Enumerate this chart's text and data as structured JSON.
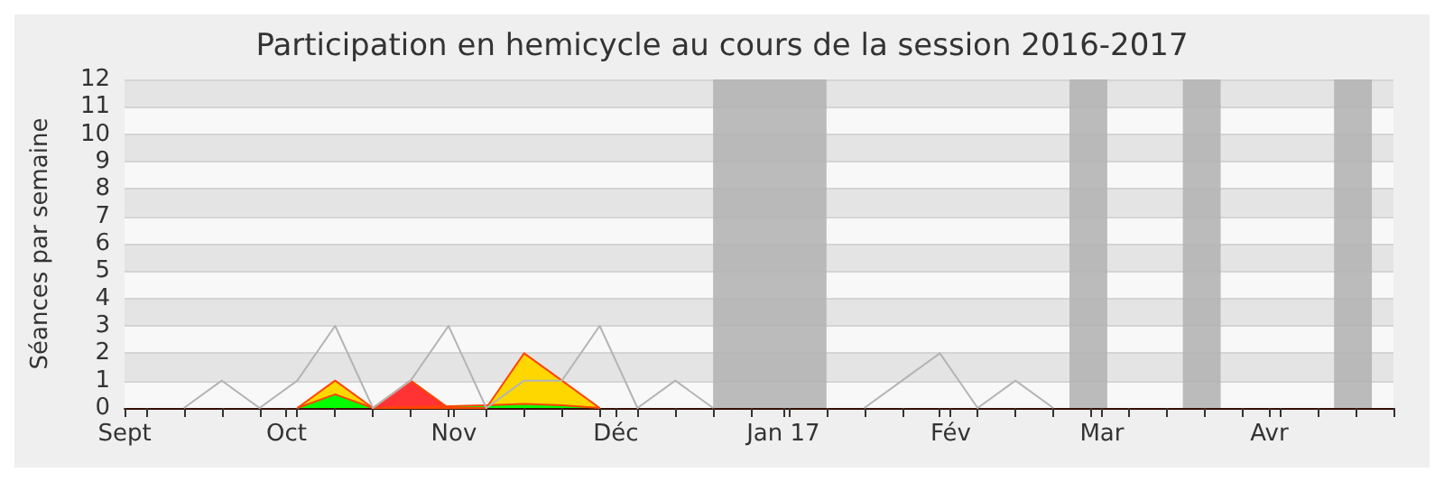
{
  "chart_data": {
    "type": "area",
    "title": "Participation en hemicycle au cours de la session 2016-2017",
    "ylabel": "Séances par semaine",
    "x": [
      "2016-09-12",
      "2016-09-19",
      "2016-09-26",
      "2016-10-03",
      "2016-10-10",
      "2016-10-17",
      "2016-10-24",
      "2016-10-31",
      "2016-11-07",
      "2016-11-14",
      "2016-11-21",
      "2016-11-28",
      "2016-12-05",
      "2016-12-12",
      "2016-12-19",
      "2016-12-26",
      "2017-01-02",
      "2017-01-09",
      "2017-01-16",
      "2017-01-23",
      "2017-01-30",
      "2017-02-06",
      "2017-02-13",
      "2017-02-20"
    ],
    "series": [
      {
        "type": "line",
        "color": "#b4b4b4",
        "values": [
          0,
          1,
          0,
          1,
          3,
          0,
          1,
          3,
          0,
          1,
          1,
          3,
          0,
          1,
          0,
          null,
          null,
          null,
          0,
          1,
          2,
          0,
          1,
          0
        ]
      },
      {
        "color": "#ffd700",
        "x": [
          "2016-10-03",
          "2016-10-10",
          "2016-10-17",
          "2016-11-07",
          "2016-11-14",
          "2016-11-21",
          "2016-11-28"
        ],
        "values": [
          0,
          1,
          0,
          0,
          2,
          1,
          0
        ]
      },
      {
        "color": "#00ff00",
        "x": [
          "2016-10-03",
          "2016-10-10",
          "2016-10-17",
          "2016-11-07",
          "2016-11-14",
          "2016-11-21",
          "2016-11-28"
        ],
        "values": [
          0,
          0.5,
          0,
          0.1,
          0.15,
          0.1,
          0
        ]
      },
      {
        "color": "#ff3333",
        "x": [
          "2016-10-17",
          "2016-10-24",
          "2016-10-31"
        ],
        "values": [
          0,
          1,
          0
        ]
      }
    ],
    "xlim": [
      "2016-09-01",
      "2017-04-24"
    ],
    "xticks": [
      {
        "value": "2016-09-01",
        "label": "Sept"
      },
      {
        "value": "2016-09-05",
        "label": null
      },
      {
        "value": "2016-09-12",
        "label": null
      },
      {
        "value": "2016-09-19",
        "label": null
      },
      {
        "value": "2016-09-26",
        "label": null
      },
      {
        "value": "2016-10-01",
        "label": "Oct"
      },
      {
        "value": "2016-10-03",
        "label": null
      },
      {
        "value": "2016-10-10",
        "label": null
      },
      {
        "value": "2016-10-17",
        "label": null
      },
      {
        "value": "2016-10-24",
        "label": null
      },
      {
        "value": "2016-10-31",
        "label": null
      },
      {
        "value": "2016-11-01",
        "label": "Nov"
      },
      {
        "value": "2016-11-07",
        "label": null
      },
      {
        "value": "2016-11-14",
        "label": null
      },
      {
        "value": "2016-11-21",
        "label": null
      },
      {
        "value": "2016-11-28",
        "label": null
      },
      {
        "value": "2016-12-01",
        "label": "Déc"
      },
      {
        "value": "2016-12-05",
        "label": null
      },
      {
        "value": "2016-12-12",
        "label": null
      },
      {
        "value": "2016-12-19",
        "label": null
      },
      {
        "value": "2016-12-26",
        "label": null
      },
      {
        "value": "2017-01-01",
        "label": "Jan 17"
      },
      {
        "value": "2017-01-02",
        "label": null
      },
      {
        "value": "2017-01-09",
        "label": null
      },
      {
        "value": "2017-01-16",
        "label": null
      },
      {
        "value": "2017-01-23",
        "label": null
      },
      {
        "value": "2017-01-30",
        "label": null
      },
      {
        "value": "2017-02-01",
        "label": "Fév"
      },
      {
        "value": "2017-02-06",
        "label": null
      },
      {
        "value": "2017-02-13",
        "label": null
      },
      {
        "value": "2017-02-20",
        "label": null
      },
      {
        "value": "2017-02-27",
        "label": null
      },
      {
        "value": "2017-03-01",
        "label": "Mar"
      },
      {
        "value": "2017-03-06",
        "label": null
      },
      {
        "value": "2017-03-13",
        "label": null
      },
      {
        "value": "2017-03-20",
        "label": null
      },
      {
        "value": "2017-03-27",
        "label": null
      },
      {
        "value": "2017-04-01",
        "label": "Avr"
      },
      {
        "value": "2017-04-03",
        "label": null
      },
      {
        "value": "2017-04-10",
        "label": null
      },
      {
        "value": "2017-04-17",
        "label": null
      },
      {
        "value": "2017-04-24",
        "label": null
      }
    ],
    "ylim": [
      0,
      12
    ],
    "yticks": [
      0,
      1,
      2,
      3,
      4,
      5,
      6,
      7,
      8,
      9,
      10,
      11,
      12
    ],
    "grid": "y",
    "marker": "none",
    "bands": [
      {
        "axis": "x",
        "from": "2016-12-19",
        "to": "2017-01-09",
        "color": "#b4b4b4"
      },
      {
        "axis": "x",
        "from": "2017-02-23",
        "to": "2017-03-02",
        "color": "#b4b4b4"
      },
      {
        "axis": "x",
        "from": "2017-03-16",
        "to": "2017-03-23",
        "color": "#b4b4b4"
      },
      {
        "axis": "x",
        "from": "2017-04-13",
        "to": "2017-04-20",
        "color": "#b4b4b4"
      }
    ]
  }
}
